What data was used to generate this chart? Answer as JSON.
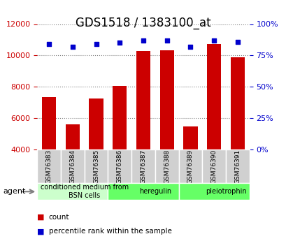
{
  "title": "GDS1518 / 1383100_at",
  "categories": [
    "GSM76383",
    "GSM76384",
    "GSM76385",
    "GSM76386",
    "GSM76387",
    "GSM76388",
    "GSM76389",
    "GSM76390",
    "GSM76391"
  ],
  "counts": [
    7350,
    5600,
    7250,
    8050,
    10300,
    10350,
    5450,
    10750,
    9900
  ],
  "percentiles": [
    84,
    82,
    84,
    85,
    87,
    87,
    82,
    87,
    86
  ],
  "percentile_scale": 100,
  "ylim_left": [
    4000,
    12000
  ],
  "ylim_right": [
    0,
    100
  ],
  "yticks_left": [
    4000,
    6000,
    8000,
    10000,
    12000
  ],
  "yticks_right": [
    0,
    25,
    50,
    75,
    100
  ],
  "bar_color": "#cc0000",
  "dot_color": "#0000cc",
  "bar_bottom": 4000,
  "groups": [
    {
      "label": "conditioned medium from\nBSN cells",
      "start": 0,
      "end": 3,
      "color": "#ccffcc"
    },
    {
      "label": "heregulin",
      "start": 3,
      "end": 6,
      "color": "#66ff66"
    },
    {
      "label": "pleiotrophin",
      "start": 6,
      "end": 9,
      "color": "#66ff66"
    }
  ],
  "agent_label": "agent",
  "legend_count_label": "count",
  "legend_pct_label": "percentile rank within the sample",
  "title_fontsize": 12,
  "axis_fontsize": 9,
  "tick_fontsize": 8
}
